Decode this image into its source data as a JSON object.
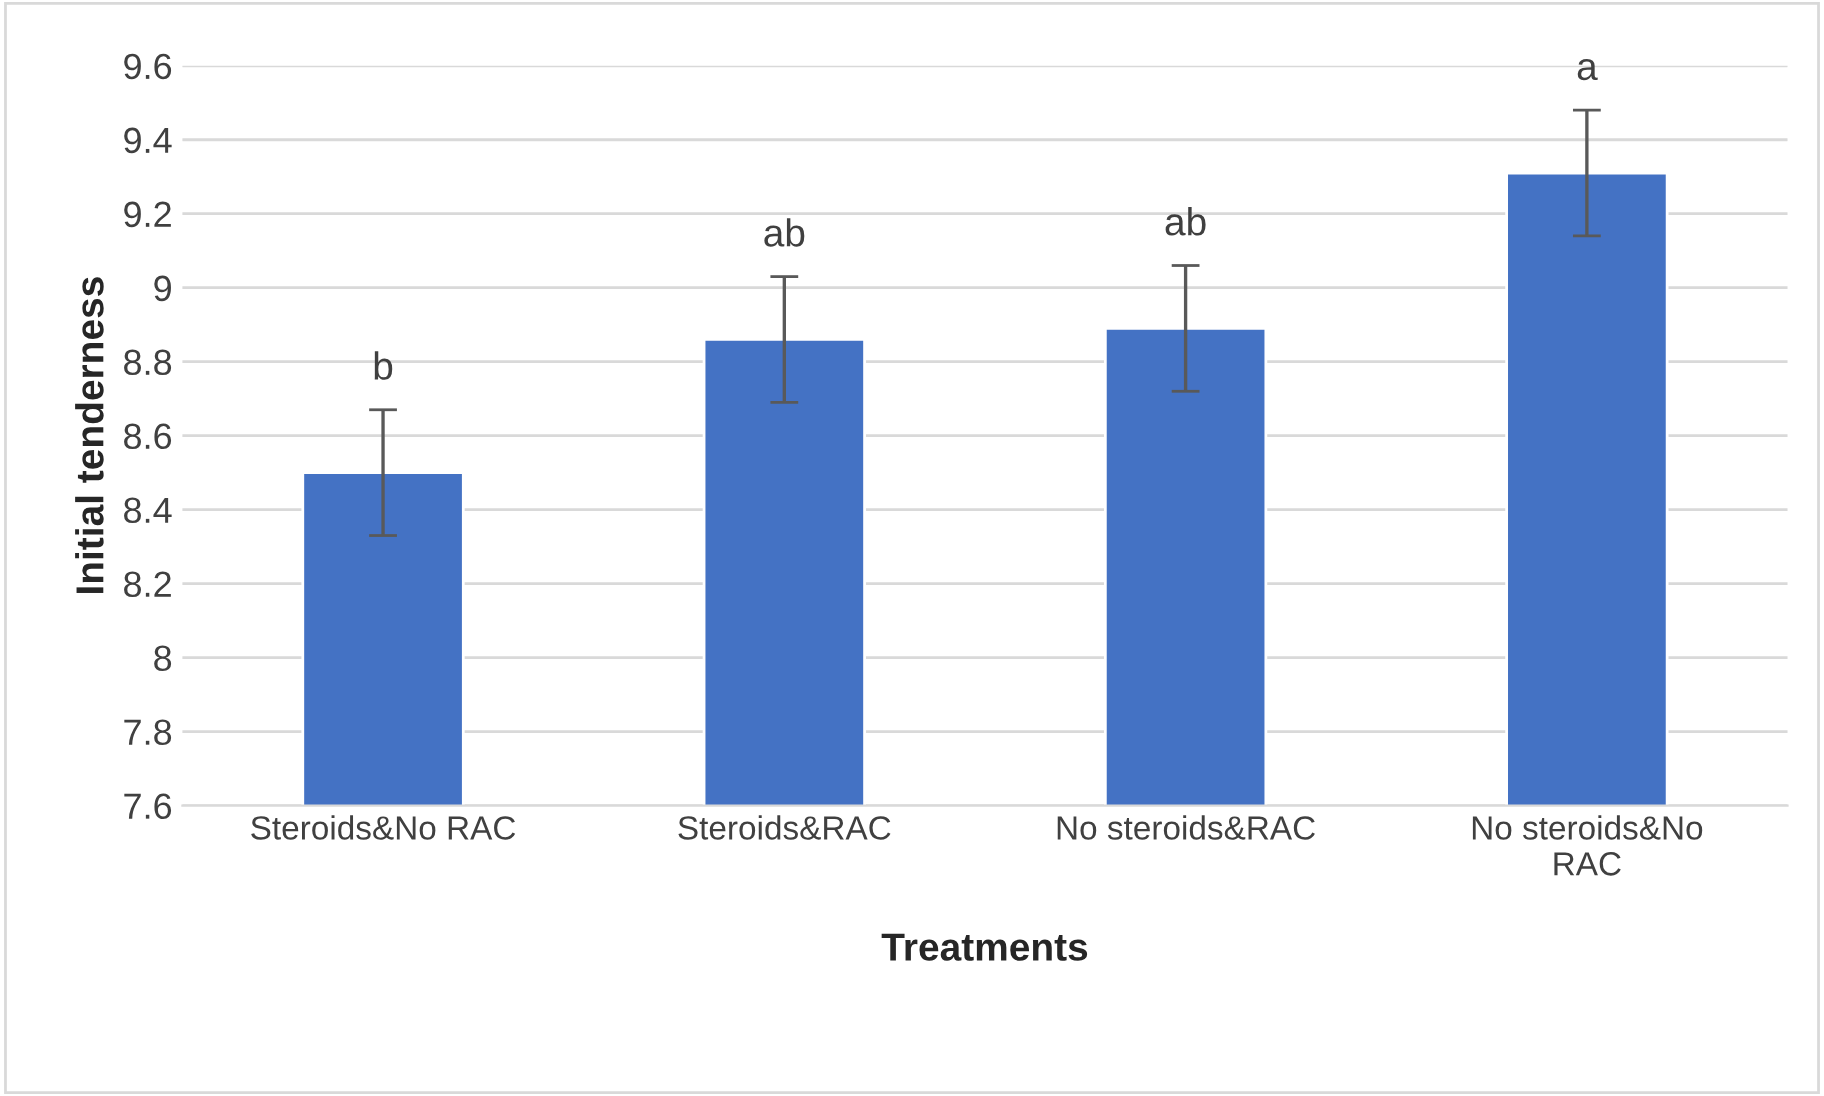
{
  "chart_data": {
    "type": "bar",
    "xlabel": "Treatments",
    "ylabel": "Initial tenderness",
    "categories": [
      "Steroids&No RAC",
      "Steroids&RAC",
      "No steroids&RAC",
      "No steroids&No\nRAC"
    ],
    "values": [
      8.5,
      8.86,
      8.89,
      9.31
    ],
    "errors": [
      0.17,
      0.17,
      0.17,
      0.17
    ],
    "color": "#4472c4",
    "ylim": [
      7.6,
      9.6
    ],
    "yticks": [
      7.6,
      7.8,
      8,
      8.2,
      8.4,
      8.6,
      8.8,
      9,
      9.2,
      9.4,
      9.6
    ],
    "grid": "y",
    "annotations": [
      "b",
      "ab",
      "ab",
      "a"
    ]
  }
}
